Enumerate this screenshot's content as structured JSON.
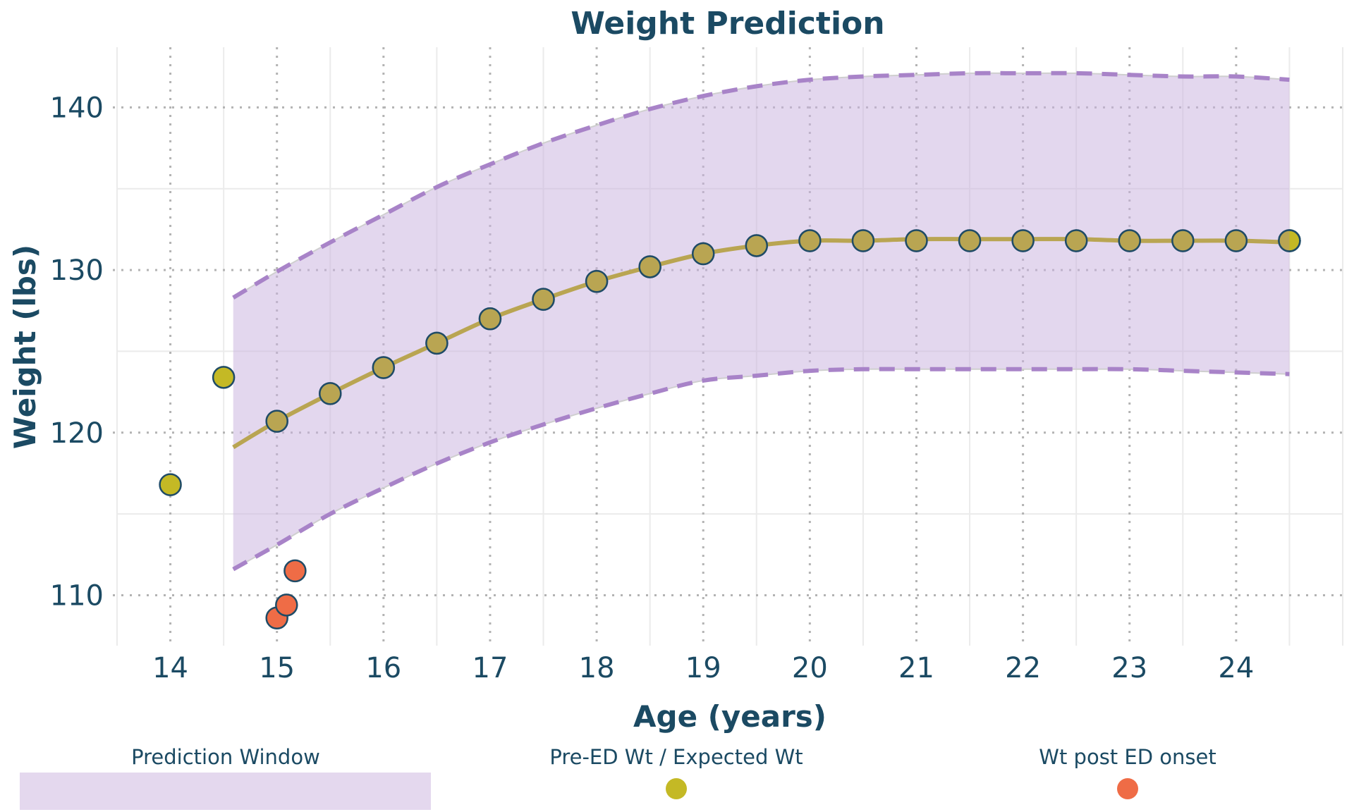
{
  "chart_data": {
    "type": "line",
    "title": "Weight Prediction",
    "xlabel": "Age (years)",
    "ylabel": "Weight (lbs)",
    "xlim": [
      13.5,
      25.0
    ],
    "ylim": [
      106.9,
      143.7
    ],
    "xticks": [
      14,
      15,
      16,
      17,
      18,
      19,
      20,
      21,
      22,
      23,
      24
    ],
    "yticks": [
      110,
      120,
      130,
      140
    ],
    "x_minor_ticks": [
      13.5,
      14.5,
      15.5,
      16.5,
      17.5,
      18.5,
      19.5,
      20.5,
      21.5,
      22.5,
      23.5,
      24.5
    ],
    "y_minor_ticks": [
      115,
      125,
      135
    ],
    "grid": true,
    "legend_position": "bottom",
    "colors": {
      "text": "#1b4a63",
      "band_fill": "#e4d8ee",
      "band_edge": "#a883c8",
      "expected_line": "#b9a552",
      "pre_ed": "#c4b925",
      "post_ed": "#ef6c46",
      "marker_edge": "#1f4b66"
    },
    "legend": [
      {
        "label": "Prediction Window",
        "kind": "band"
      },
      {
        "label": "Pre-ED Wt / Expected Wt",
        "kind": "dot"
      },
      {
        "label": "Wt post ED onset",
        "kind": "dot"
      }
    ],
    "prediction_window": {
      "name": "Prediction Window",
      "x": [
        14.59,
        15,
        15.5,
        16,
        16.5,
        17,
        17.5,
        18,
        18.5,
        19,
        19.5,
        20,
        20.5,
        21,
        21.5,
        22,
        22.5,
        23,
        23.5,
        24,
        24.5
      ],
      "upper": [
        128.3,
        129.9,
        131.7,
        133.4,
        135.1,
        136.5,
        137.8,
        138.9,
        139.9,
        140.7,
        141.3,
        141.7,
        141.9,
        142.0,
        142.1,
        142.1,
        142.1,
        142.0,
        141.9,
        141.9,
        141.7
      ],
      "lower": [
        111.6,
        113.1,
        115.0,
        116.6,
        118.1,
        119.4,
        120.5,
        121.5,
        122.4,
        123.2,
        123.5,
        123.8,
        123.9,
        123.9,
        123.9,
        123.9,
        123.9,
        123.9,
        123.8,
        123.7,
        123.6
      ]
    },
    "expected_line": {
      "name": "Expected Wt",
      "x": [
        14.59,
        15,
        15.5,
        16,
        16.5,
        17,
        17.5,
        18,
        18.5,
        19,
        19.5,
        20,
        20.5,
        21,
        21.5,
        22,
        22.5,
        23,
        23.5,
        24,
        24.5
      ],
      "y": [
        119.1,
        120.7,
        122.4,
        124.0,
        125.5,
        127.0,
        128.2,
        129.3,
        130.2,
        131.0,
        131.5,
        131.8,
        131.8,
        131.9,
        131.9,
        131.9,
        131.9,
        131.8,
        131.8,
        131.8,
        131.7
      ]
    },
    "series": [
      {
        "name": "Expected Wt",
        "x": [
          15,
          15.5,
          16,
          16.5,
          17,
          17.5,
          18,
          18.5,
          19,
          19.5,
          20,
          20.5,
          21,
          21.5,
          22,
          22.5,
          23,
          23.5,
          24,
          24.5
        ],
        "y": [
          120.7,
          122.4,
          124.0,
          125.5,
          127.0,
          128.2,
          129.3,
          130.2,
          131.0,
          131.5,
          131.8,
          131.8,
          131.8,
          131.8,
          131.8,
          131.8,
          131.8,
          131.8,
          131.8,
          131.8
        ]
      },
      {
        "name": "Pre-ED Wt",
        "x": [
          14.0,
          14.5
        ],
        "y": [
          116.8,
          123.4
        ]
      },
      {
        "name": "Wt post ED onset",
        "x": [
          15.0,
          15.09,
          15.17
        ],
        "y": [
          108.6,
          109.4,
          111.5
        ]
      }
    ]
  }
}
